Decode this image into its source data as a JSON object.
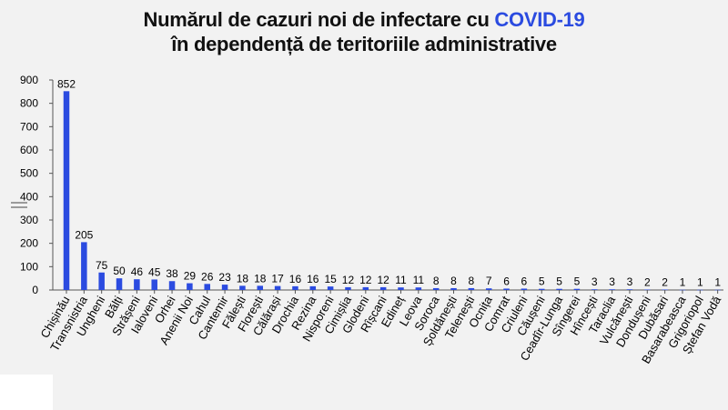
{
  "title": {
    "line1_prefix": "Numărul de cazuri noi de infectare cu",
    "line1_accent": "COVID-19",
    "line2": "în dependență de teritoriile administrative"
  },
  "colors": {
    "bar": "#2b4be0",
    "accent": "#2b4be0",
    "background": "#f2f2f2"
  },
  "chart_data": {
    "type": "bar",
    "title": "Numărul de cazuri noi de infectare cu COVID-19 în dependență de teritoriile administrative",
    "xlabel": "",
    "ylabel": "",
    "ylim": [
      0,
      900
    ],
    "yticks": [
      0,
      100,
      200,
      300,
      400,
      500,
      600,
      700,
      800,
      900
    ],
    "grid": false,
    "data_labels": true,
    "categories": [
      "Chișinău",
      "Transnistria",
      "Ungheni",
      "Bălți",
      "Strășeni",
      "Ialoveni",
      "Orhei",
      "Anenii Noi",
      "Cahul",
      "Cantemir",
      "Fălești",
      "Florești",
      "Călărași",
      "Drochia",
      "Rezina",
      "Nisporeni",
      "Cimișlia",
      "Glodeni",
      "Rîșcani",
      "Edineț",
      "Leova",
      "Soroca",
      "Șoldănești",
      "Telenești",
      "Ocnița",
      "Comrat",
      "Criuleni",
      "Căușeni",
      "Ceadîr-Lunga",
      "Sîngerei",
      "Hîncești",
      "Taraclia",
      "Vulcănești",
      "Dondușeni",
      "Dubăsari",
      "Basarabeasca",
      "Grigoriopol",
      "Ștefan Vodă"
    ],
    "values": [
      852,
      205,
      75,
      50,
      46,
      45,
      38,
      29,
      26,
      23,
      18,
      18,
      17,
      16,
      16,
      15,
      12,
      12,
      12,
      11,
      11,
      8,
      8,
      8,
      7,
      6,
      6,
      5,
      5,
      5,
      3,
      3,
      3,
      2,
      2,
      1,
      1,
      1
    ]
  }
}
